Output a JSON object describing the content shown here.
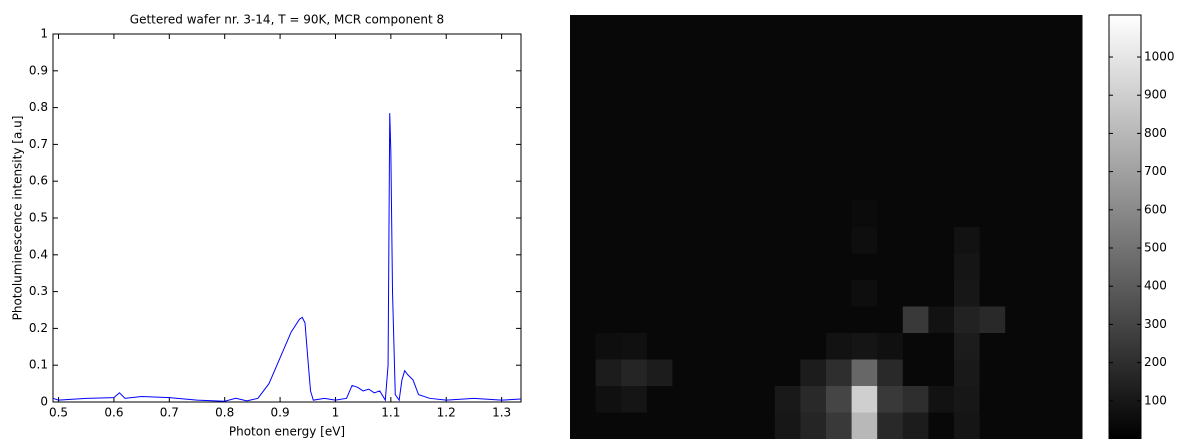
{
  "chart_data": [
    {
      "type": "line",
      "title": "Gettered wafer nr. 3-14, T = 90K, MCR component 8",
      "xlabel": "Photon energy [eV]",
      "ylabel": "Photoluminescence intensity [a.u]",
      "color": "#0000ff",
      "x": [
        0.49,
        0.5,
        0.55,
        0.6,
        0.61,
        0.62,
        0.65,
        0.7,
        0.75,
        0.8,
        0.82,
        0.84,
        0.86,
        0.88,
        0.9,
        0.92,
        0.935,
        0.94,
        0.945,
        0.95,
        0.955,
        0.96,
        0.98,
        1.0,
        1.02,
        1.03,
        1.04,
        1.05,
        1.06,
        1.07,
        1.08,
        1.09,
        1.095,
        1.098,
        1.1,
        1.103,
        1.108,
        1.115,
        1.12,
        1.125,
        1.13,
        1.14,
        1.15,
        1.17,
        1.2,
        1.25,
        1.3,
        1.335
      ],
      "values": [
        0.01,
        0.005,
        0.01,
        0.012,
        0.025,
        0.01,
        0.015,
        0.012,
        0.005,
        0.002,
        0.01,
        0.003,
        0.01,
        0.05,
        0.12,
        0.19,
        0.225,
        0.23,
        0.215,
        0.12,
        0.03,
        0.005,
        0.01,
        0.005,
        0.01,
        0.045,
        0.04,
        0.03,
        0.035,
        0.025,
        0.03,
        0.005,
        0.1,
        0.785,
        0.68,
        0.3,
        0.02,
        0.005,
        0.06,
        0.085,
        0.075,
        0.06,
        0.02,
        0.01,
        0.005,
        0.01,
        0.005,
        0.008
      ],
      "xlim": [
        0.49,
        1.335
      ],
      "ylim": [
        0,
        1
      ],
      "xticks": [
        0.5,
        0.6,
        0.7,
        0.8,
        0.9,
        1,
        1.1,
        1.2,
        1.3
      ],
      "yticks": [
        0,
        0.1,
        0.2,
        0.3,
        0.4,
        0.5,
        0.6,
        0.7,
        0.8,
        0.9,
        1
      ]
    },
    {
      "type": "heatmap",
      "clim": [
        0,
        1110
      ],
      "cticks": [
        100,
        200,
        300,
        400,
        500,
        600,
        700,
        800,
        900,
        1000
      ],
      "values": [
        [
          35,
          35,
          35,
          35,
          35,
          35,
          35,
          35,
          35,
          35,
          35,
          35,
          35,
          35,
          35,
          35,
          35,
          35,
          35,
          35
        ],
        [
          35,
          35,
          35,
          35,
          35,
          35,
          35,
          35,
          35,
          35,
          35,
          35,
          35,
          35,
          35,
          35,
          35,
          35,
          35,
          35
        ],
        [
          35,
          35,
          35,
          35,
          35,
          35,
          35,
          35,
          35,
          35,
          35,
          35,
          35,
          35,
          35,
          35,
          35,
          35,
          35,
          35
        ],
        [
          35,
          35,
          35,
          35,
          35,
          35,
          35,
          35,
          35,
          35,
          35,
          35,
          35,
          35,
          35,
          35,
          35,
          35,
          35,
          35
        ],
        [
          35,
          35,
          35,
          35,
          35,
          35,
          35,
          35,
          35,
          35,
          35,
          35,
          35,
          35,
          35,
          35,
          35,
          35,
          35,
          35
        ],
        [
          35,
          35,
          35,
          35,
          35,
          35,
          35,
          35,
          35,
          35,
          35,
          35,
          35,
          35,
          35,
          35,
          35,
          35,
          35,
          35
        ],
        [
          35,
          35,
          35,
          35,
          35,
          35,
          35,
          35,
          35,
          35,
          35,
          35,
          35,
          35,
          35,
          35,
          35,
          35,
          35,
          35
        ],
        [
          35,
          35,
          35,
          35,
          35,
          35,
          35,
          35,
          35,
          35,
          35,
          50,
          35,
          35,
          35,
          35,
          35,
          35,
          35,
          35
        ],
        [
          35,
          35,
          35,
          35,
          35,
          35,
          35,
          35,
          35,
          35,
          35,
          60,
          35,
          35,
          35,
          80,
          35,
          35,
          35,
          35
        ],
        [
          35,
          35,
          35,
          35,
          35,
          35,
          35,
          35,
          35,
          35,
          35,
          35,
          35,
          35,
          35,
          90,
          35,
          35,
          35,
          35
        ],
        [
          35,
          35,
          35,
          35,
          35,
          35,
          35,
          35,
          35,
          35,
          35,
          60,
          35,
          35,
          35,
          100,
          35,
          35,
          35,
          35
        ],
        [
          35,
          35,
          35,
          35,
          35,
          35,
          35,
          35,
          35,
          35,
          35,
          35,
          35,
          250,
          80,
          150,
          180,
          35,
          35,
          35
        ],
        [
          35,
          60,
          70,
          35,
          35,
          35,
          35,
          35,
          35,
          35,
          80,
          90,
          70,
          35,
          35,
          120,
          35,
          35,
          35,
          35
        ],
        [
          35,
          120,
          160,
          120,
          35,
          35,
          35,
          35,
          35,
          120,
          200,
          450,
          180,
          35,
          35,
          110,
          35,
          35,
          35,
          35
        ],
        [
          35,
          70,
          90,
          35,
          35,
          35,
          35,
          35,
          110,
          180,
          300,
          900,
          250,
          200,
          80,
          100,
          35,
          35,
          35,
          35
        ],
        [
          35,
          35,
          35,
          35,
          35,
          35,
          35,
          35,
          100,
          160,
          250,
          800,
          180,
          120,
          35,
          90,
          35,
          35,
          35,
          35
        ]
      ]
    }
  ]
}
